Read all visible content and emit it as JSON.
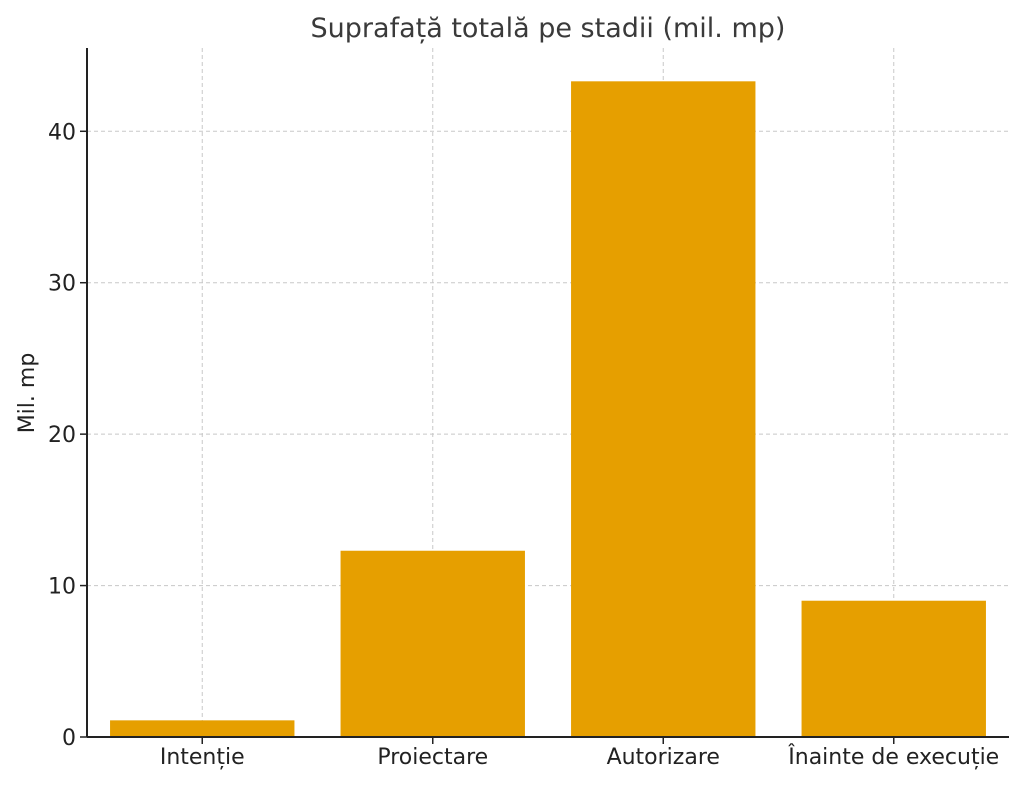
{
  "chart_data": {
    "type": "bar",
    "title": "Suprafață totală pe stadii (mil. mp)",
    "xlabel": "",
    "ylabel": "Mil. mp",
    "categories": [
      "Intenție",
      "Proiectare",
      "Autorizare",
      "Înainte de execuție"
    ],
    "values": [
      1.1,
      12.3,
      43.3,
      9.0
    ],
    "ylim": [
      0,
      45.5
    ],
    "yticks": [
      0,
      10,
      20,
      30,
      40
    ],
    "grid": true,
    "bar_color": "#e69f00"
  }
}
